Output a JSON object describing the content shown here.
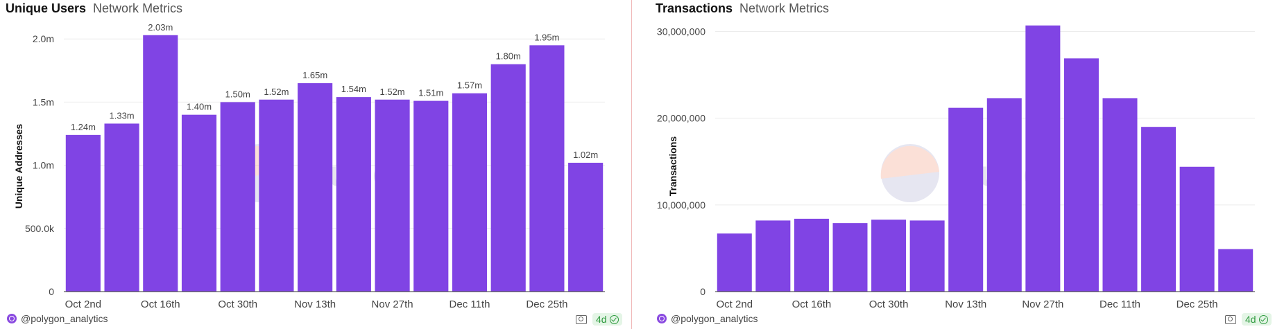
{
  "panels": [
    {
      "title": "Unique Users",
      "subtitle": "Network Metrics",
      "watermark": "Dune",
      "author": "@polygon_analytics",
      "freshness": "4d"
    },
    {
      "title": "Transactions",
      "subtitle": "Network Metrics",
      "watermark": "Dune",
      "author": "@polygon_analytics",
      "freshness": "4d"
    }
  ],
  "colors": {
    "bar": "#8044e4",
    "grid": "#ececec",
    "axis": "#333333",
    "text": "#444444"
  },
  "chart_data": [
    {
      "type": "bar",
      "title": "Unique Users",
      "ylabel": "Unique Addresses",
      "xlabel": "",
      "ylim": [
        0,
        2100000
      ],
      "yticks": [
        0,
        500000,
        1000000,
        1500000,
        2000000
      ],
      "ytick_labels": [
        "0",
        "500.0k",
        "1.0m",
        "1.5m",
        "2.0m"
      ],
      "xtick_labels": [
        "Oct 2nd",
        "Oct 16th",
        "Oct 30th",
        "Nov 13th",
        "Nov 27th",
        "Dec 11th",
        "Dec 25th"
      ],
      "xtick_every": 2,
      "values": [
        1240000,
        1330000,
        2030000,
        1400000,
        1500000,
        1520000,
        1650000,
        1540000,
        1520000,
        1510000,
        1570000,
        1800000,
        1950000,
        1020000
      ],
      "data_labels": [
        "1.24m",
        "1.33m",
        "2.03m",
        "1.40m",
        "1.50m",
        "1.52m",
        "1.65m",
        "1.54m",
        "1.52m",
        "1.51m",
        "1.57m",
        "1.80m",
        "1.95m",
        "1.02m"
      ],
      "grid": true
    },
    {
      "type": "bar",
      "title": "Transactions",
      "ylabel": "Transactions",
      "xlabel": "",
      "ylim": [
        0,
        30600000
      ],
      "yticks": [
        0,
        10000000,
        20000000,
        30000000
      ],
      "ytick_labels": [
        "0",
        "10,000,000",
        "20,000,000",
        "30,000,000"
      ],
      "xtick_labels": [
        "Oct 2nd",
        "Oct 16th",
        "Oct 30th",
        "Nov 13th",
        "Nov 27th",
        "Dec 11th",
        "Dec 25th"
      ],
      "xtick_every": 2,
      "values": [
        6700000,
        8200000,
        8400000,
        7900000,
        8300000,
        8200000,
        21200000,
        22300000,
        30700000,
        26900000,
        22300000,
        19000000,
        14400000,
        4900000
      ],
      "data_labels": [],
      "grid": true
    }
  ]
}
